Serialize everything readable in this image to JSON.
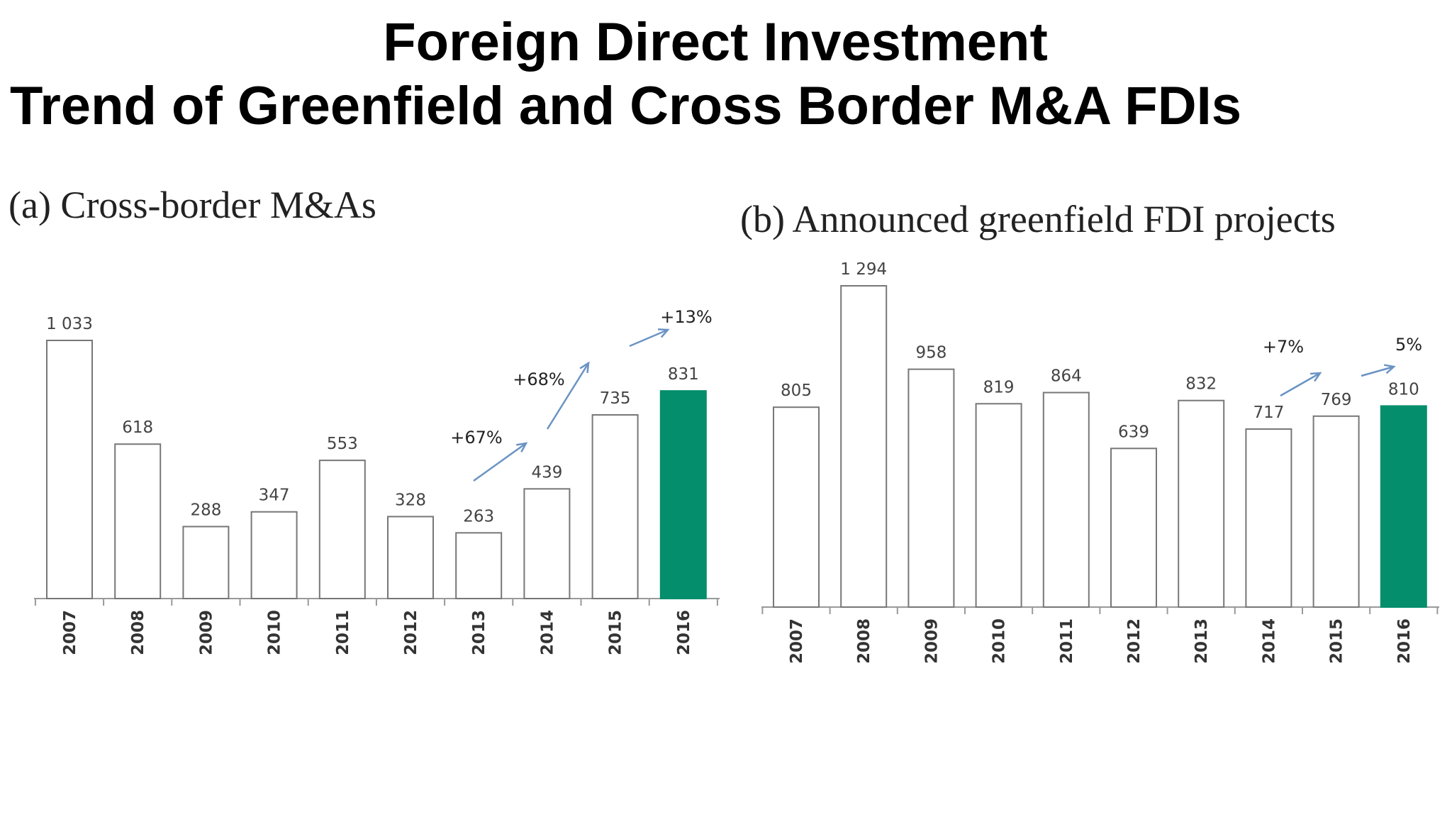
{
  "title_line1": "Foreign Direct Investment",
  "title_line2": "Trend of Greenfield and Cross Border M&A FDIs",
  "colors": {
    "highlight": "#048e6c",
    "arrow": "#6a93c4",
    "bar_border": "#777777"
  },
  "chart_data": [
    {
      "type": "bar",
      "title": "(a) Cross-border M&As",
      "categories": [
        "2007",
        "2008",
        "2009",
        "2010",
        "2011",
        "2012",
        "2013",
        "2014",
        "2015",
        "2016"
      ],
      "values": [
        1033,
        618,
        288,
        347,
        553,
        328,
        263,
        439,
        735,
        831
      ],
      "value_labels": [
        "1 033",
        "618",
        "288",
        "347",
        "553",
        "328",
        "263",
        "439",
        "735",
        "831"
      ],
      "highlight_category": "2016",
      "ylim": [
        0,
        1100
      ],
      "grid": false,
      "annotations": [
        {
          "text": "+67%",
          "from": "2013",
          "to": "2014"
        },
        {
          "text": "+68%",
          "from": "2014",
          "to": "2015"
        },
        {
          "text": "+13%",
          "from": "2015",
          "to": "2016"
        }
      ]
    },
    {
      "type": "bar",
      "title": "(b) Announced greenfield FDI projects",
      "categories": [
        "2007",
        "2008",
        "2009",
        "2010",
        "2011",
        "2012",
        "2013",
        "2014",
        "2015",
        "2016"
      ],
      "values": [
        805,
        1294,
        958,
        819,
        864,
        639,
        832,
        717,
        769,
        810
      ],
      "value_labels": [
        "805",
        "1 294",
        "958",
        "819",
        "864",
        "639",
        "832",
        "717",
        "769",
        "810"
      ],
      "highlight_category": "2016",
      "ylim": [
        0,
        1350
      ],
      "grid": false,
      "annotations": [
        {
          "text": "+7%",
          "from": "2014",
          "to": "2015"
        },
        {
          "text": "5%",
          "from": "2015",
          "to": "2016"
        }
      ]
    }
  ]
}
